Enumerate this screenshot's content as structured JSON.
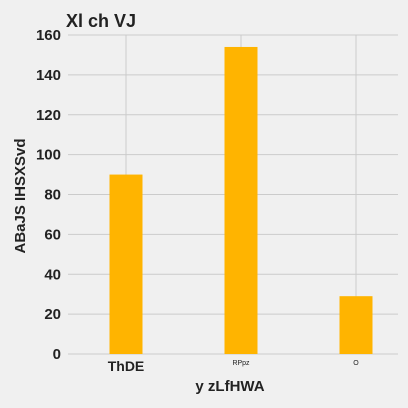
{
  "chart_data": {
    "type": "bar",
    "title": "Xl   ch VJ",
    "xlabel": "y  zLfHWA",
    "ylabel": "ABaJS IHSXSvd",
    "categories": [
      "ThDE",
      "RPpz",
      "O"
    ],
    "values": [
      90,
      154,
      29
    ],
    "ylim": [
      0,
      160
    ],
    "yticks": [
      0,
      20,
      40,
      60,
      80,
      100,
      120,
      140,
      160
    ],
    "grid": true,
    "bar_color": "#ffb400",
    "background": "#f0f0f0"
  }
}
